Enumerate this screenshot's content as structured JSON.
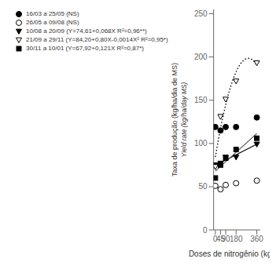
{
  "chart_data": {
    "type": "scatter",
    "xlabel": "Doses de nitrogênio (kg/ha)",
    "ylabel": [
      "Taxa de produção (kg/ha/dia de MS)",
      "Yield rate (kg/ha/day MS)"
    ],
    "xlim": [
      -15,
      390
    ],
    "ylim": [
      0,
      255
    ],
    "xticks": [
      0,
      45,
      90,
      180,
      360
    ],
    "yticks": [
      0,
      50,
      100,
      150,
      200,
      250
    ],
    "grid": false,
    "legend": "upper left",
    "series": [
      {
        "name": "16/03 a 25/05 (NS)",
        "x": [
          0,
          45,
          90,
          180,
          360
        ],
        "values": [
          119,
          115,
          119,
          119,
          130
        ],
        "marker": "circle",
        "color": "#000000"
      },
      {
        "name": "26/05 a 09/08 (NS)",
        "x": [
          0,
          45,
          90,
          180,
          360
        ],
        "values": [
          51,
          47,
          52,
          54,
          57
        ],
        "marker": "open_circle",
        "color": "#000000"
      },
      {
        "name": "10/08 a 20/09 (Y=74,61+0,068X R²=0,96**)",
        "x": [
          0,
          45,
          90,
          180,
          360
        ],
        "values": [
          75,
          77,
          84,
          84,
          99
        ],
        "marker": "triangle_down",
        "color": "#000000"
      },
      {
        "name": "21/09 a 29/11 (Y=84,20+0,80X-0,0014X² R²=0,95*)",
        "x": [
          0,
          45,
          90,
          180,
          360
        ],
        "values": [
          73,
          131,
          151,
          172,
          193
        ],
        "marker": "open_triangle_down",
        "color": "#000000"
      },
      {
        "name": "30/11 a 10/01 (Y=67,92+0,121X R²=0,87*)",
        "x": [
          0,
          45,
          90,
          180,
          360
        ],
        "values": [
          60,
          75,
          83,
          93,
          106
        ],
        "marker": "square",
        "color": "#000000"
      },
      {
        "type": "line",
        "x": [
          0,
          360
        ],
        "values": [
          74.61,
          99.09
        ],
        "color": "#000000",
        "line_style": "solid"
      },
      {
        "type": "line",
        "x": [
          0,
          360
        ],
        "values": [
          67.92,
          111.48
        ],
        "color": "#555555",
        "line_style": "solid"
      },
      {
        "type": "line",
        "x": [
          0,
          15,
          30,
          45,
          60,
          75,
          90,
          105,
          120,
          135,
          150,
          165,
          180,
          195,
          210,
          225,
          240,
          255,
          270,
          285,
          300,
          315,
          330,
          345,
          360
        ],
        "values": [
          84.2,
          95.885,
          106.94,
          117.365,
          127.16,
          136.325,
          144.86,
          152.765,
          160.04,
          166.685,
          172.7,
          178.085,
          182.84,
          186.965,
          190.46,
          193.325,
          195.56,
          197.165,
          198.14,
          198.485,
          198.2,
          197.285,
          195.74,
          193.565,
          190.76
        ],
        "color": "#000000",
        "line_style": "dotted"
      }
    ]
  }
}
